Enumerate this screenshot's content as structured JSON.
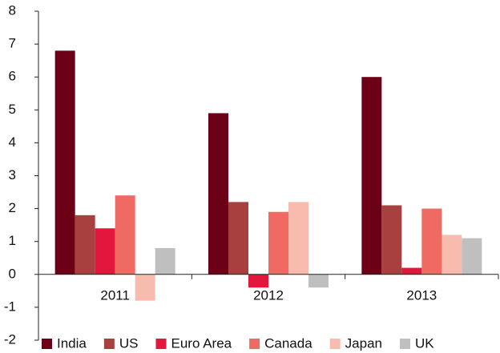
{
  "chart_data": {
    "type": "bar",
    "categories": [
      "2011",
      "2012",
      "2013"
    ],
    "series": [
      {
        "name": "India",
        "color": "#6b0016",
        "values": [
          6.8,
          4.9,
          6.0
        ]
      },
      {
        "name": "US",
        "color": "#a8403f",
        "values": [
          1.8,
          2.2,
          2.1
        ]
      },
      {
        "name": "Euro Area",
        "color": "#e3173e",
        "values": [
          1.4,
          -0.4,
          0.2
        ]
      },
      {
        "name": "Canada",
        "color": "#ef6a62",
        "values": [
          2.4,
          1.9,
          2.0
        ]
      },
      {
        "name": "Japan",
        "color": "#f7bcae",
        "values": [
          -0.8,
          2.2,
          1.2
        ]
      },
      {
        "name": "UK",
        "color": "#bfbfbf",
        "values": [
          0.8,
          -0.4,
          1.1
        ]
      }
    ],
    "ylim": [
      -2,
      8
    ],
    "yticks": [
      -2,
      -1,
      0,
      1,
      2,
      3,
      4,
      5,
      6,
      7,
      8
    ],
    "grid": false,
    "legend": "bottom"
  }
}
